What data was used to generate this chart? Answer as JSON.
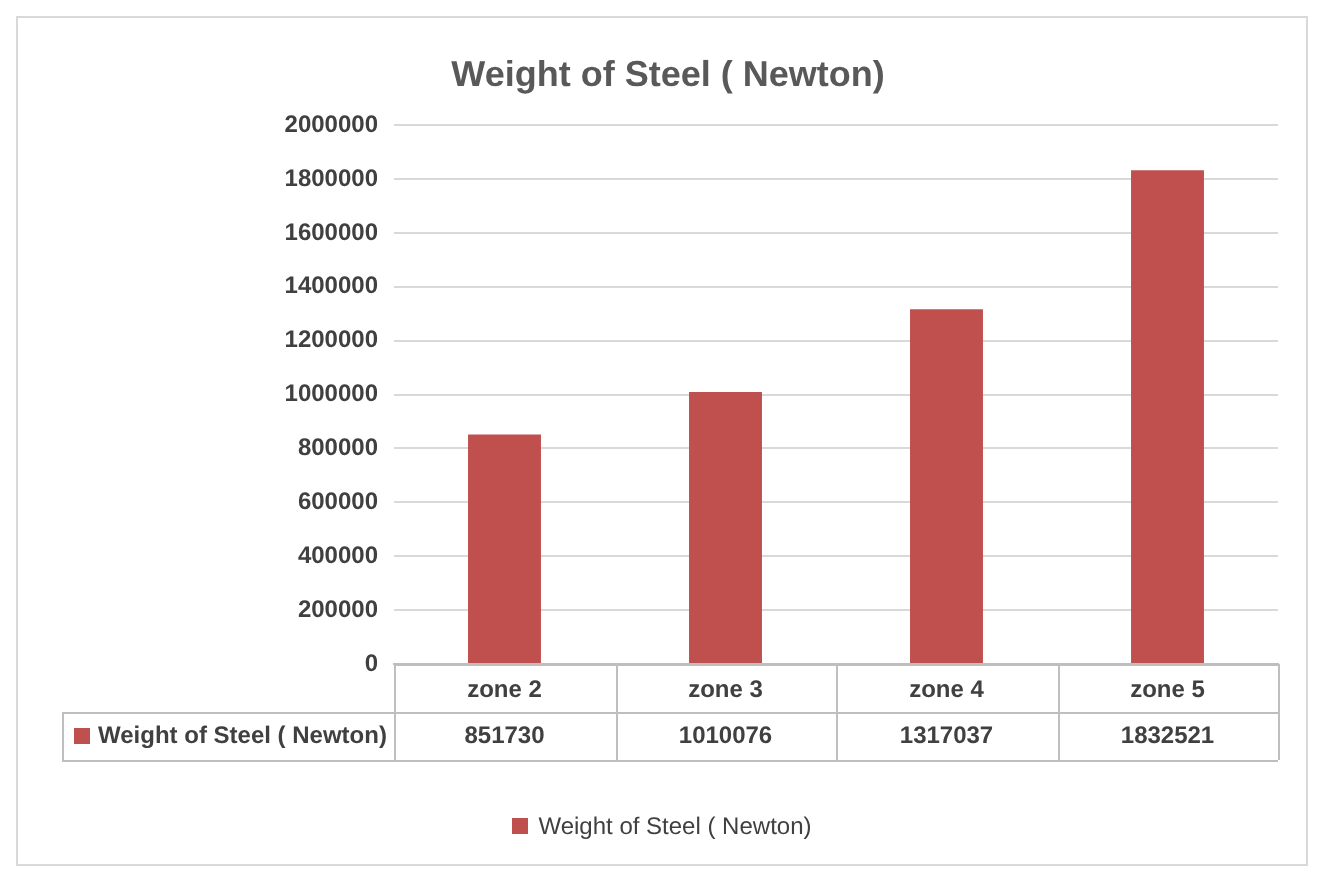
{
  "chart_data": {
    "type": "bar",
    "title": "Weight of Steel ( Newton)",
    "categories": [
      "zone 2",
      "zone 3",
      "zone 4",
      "zone 5"
    ],
    "series": [
      {
        "name": "Weight of Steel ( Newton)",
        "color": "#c0504d",
        "values": [
          851730,
          1010076,
          1317037,
          1832521
        ]
      }
    ],
    "ylim": [
      0,
      2000000
    ],
    "yticks": [
      0,
      200000,
      400000,
      600000,
      800000,
      1000000,
      1200000,
      1400000,
      1600000,
      1800000,
      2000000
    ],
    "grid": "y",
    "legend": "bottom",
    "data_labels": true
  }
}
